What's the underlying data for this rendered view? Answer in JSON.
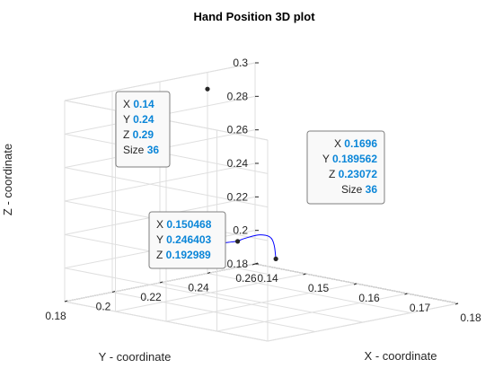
{
  "chart_data": {
    "type": "line",
    "title": "Hand Position 3D plot",
    "xlabel": "X - coordinate",
    "ylabel": "Y - coordinate",
    "zlabel": "Z - coordinate",
    "x_ticks": [
      "0.14",
      "0.15",
      "0.16",
      "0.17",
      "0.18"
    ],
    "y_ticks": [
      "0.26",
      "0.24",
      "0.22",
      "0.2",
      "0.18"
    ],
    "z_ticks": [
      "0.18",
      "0.2",
      "0.22",
      "0.24",
      "0.26",
      "0.28",
      "0.3"
    ],
    "xlim": [
      0.14,
      0.18
    ],
    "ylim": [
      0.18,
      0.26
    ],
    "zlim": [
      0.18,
      0.3
    ],
    "grid": true,
    "series": [
      {
        "color": "#0000ff",
        "points": [
          {
            "x": 0.150468,
            "y": 0.246403,
            "z": 0.192989
          },
          {
            "x": 0.1532,
            "y": 0.24,
            "z": 0.205
          },
          {
            "x": 0.1562,
            "y": 0.232,
            "z": 0.214
          },
          {
            "x": 0.1598,
            "y": 0.22,
            "z": 0.2205
          },
          {
            "x": 0.164,
            "y": 0.208,
            "z": 0.2255
          },
          {
            "x": 0.1675,
            "y": 0.196,
            "z": 0.229
          },
          {
            "x": 0.1696,
            "y": 0.189562,
            "z": 0.23072
          },
          {
            "x": 0.1715,
            "y": 0.186,
            "z": 0.233
          },
          {
            "x": 0.1712,
            "y": 0.1805,
            "z": 0.2333
          },
          {
            "x": 0.169,
            "y": 0.1795,
            "z": 0.231
          }
        ]
      }
    ],
    "datatips": [
      {
        "X": "0.14",
        "Y": "0.24",
        "Z": "0.29",
        "Size": "36"
      },
      {
        "X": "0.1696",
        "Y": "0.189562",
        "Z": "0.23072",
        "Size": "36"
      },
      {
        "X": "0.150468",
        "Y": "0.246403",
        "Z": "0.192989"
      }
    ],
    "datatip_labels": {
      "x": "X",
      "y": "Y",
      "z": "Z",
      "size": "Size"
    }
  }
}
